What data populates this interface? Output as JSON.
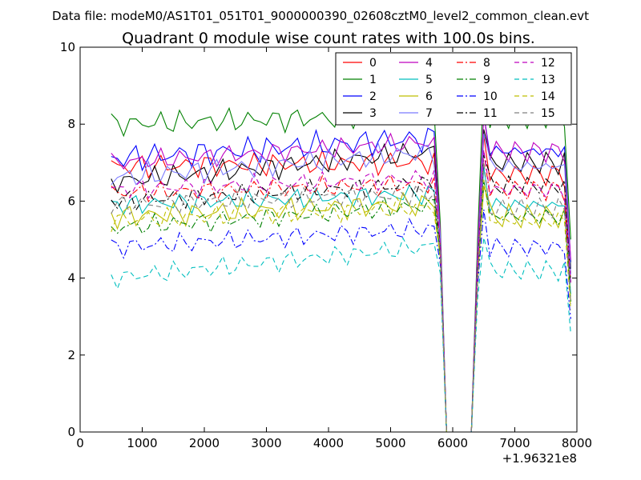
{
  "chart_data": {
    "type": "line",
    "supertitle": "Data file: modeM0/AS1T01_051T01_9000000390_02608cztM0_level2_common_clean.evt",
    "title": "Quadrant 0 module wise count rates with 100.0s bins.",
    "xlabel": "",
    "ylabel": "",
    "x_offset_label": "+1.96321e8",
    "xlim": [
      0,
      8000
    ],
    "ylim": [
      0,
      10
    ],
    "x_ticks": [
      0,
      1000,
      2000,
      3000,
      4000,
      5000,
      6000,
      7000,
      8000
    ],
    "x_tick_labels": [
      "0",
      "1000",
      "2000",
      "3000",
      "4000",
      "5000",
      "6000",
      "7000",
      "8000"
    ],
    "y_ticks": [
      0,
      2,
      4,
      6,
      8,
      10
    ],
    "y_tick_labels": [
      "0",
      "2",
      "4",
      "6",
      "8",
      "10"
    ],
    "grid": false,
    "legend_position": "top-right",
    "x_segment_1": [
      500,
      600,
      700,
      800,
      900,
      1000,
      1100,
      1200,
      1300,
      1400,
      1500,
      1600,
      1700,
      1800,
      1900,
      2000,
      2100,
      2200,
      2300,
      2400,
      2500,
      2600,
      2700,
      2800,
      2900,
      3000,
      3100,
      3200,
      3300,
      3400,
      3500,
      3600,
      3700,
      3800,
      3900,
      4000,
      4100,
      4200,
      4300,
      4400,
      4500,
      4600,
      4700,
      4800,
      4900,
      5000,
      5100,
      5200,
      5300,
      5400,
      5500,
      5600,
      5700,
      5800
    ],
    "gap_x": [
      5900,
      6000,
      6100,
      6200,
      6300
    ],
    "x_segment_2": [
      6400,
      6500,
      6600,
      6700,
      6800,
      6900,
      7000,
      7100,
      7200,
      7300,
      7400,
      7500,
      7600,
      7700,
      7800,
      7900
    ],
    "series": [
      {
        "name": "0",
        "color": "#ff0000",
        "style": "solid",
        "base1": 6.9,
        "slope1": 0.12,
        "base2": 6.7,
        "amp": 0.35,
        "phase": 0.3
      },
      {
        "name": "1",
        "color": "#008000",
        "style": "solid",
        "base1": 8.0,
        "slope1": 0.25,
        "base2": 8.2,
        "amp": 0.35,
        "phase": 1.1
      },
      {
        "name": "2",
        "color": "#0000ff",
        "style": "solid",
        "base1": 7.1,
        "slope1": 0.55,
        "base2": 7.3,
        "amp": 0.4,
        "phase": 2.0
      },
      {
        "name": "3",
        "color": "#000000",
        "style": "solid",
        "base1": 6.5,
        "slope1": 0.8,
        "base2": 7.0,
        "amp": 0.35,
        "phase": 2.7
      },
      {
        "name": "4",
        "color": "#bf00bf",
        "style": "solid",
        "base1": 7.0,
        "slope1": 0.55,
        "base2": 7.3,
        "amp": 0.3,
        "phase": 0.8
      },
      {
        "name": "5",
        "color": "#00bfbf",
        "style": "solid",
        "base1": 5.9,
        "slope1": 0.3,
        "base2": 5.9,
        "amp": 0.3,
        "phase": 1.7
      },
      {
        "name": "6",
        "color": "#bfbf00",
        "style": "solid",
        "base1": 5.6,
        "slope1": 0.35,
        "base2": 5.6,
        "amp": 0.35,
        "phase": 3.3
      },
      {
        "name": "7",
        "color": "#7a7aff",
        "style": "solid",
        "base1": 6.6,
        "slope1": 0.7,
        "base2": 6.9,
        "amp": 0.35,
        "phase": 4.1
      },
      {
        "name": "8",
        "color": "#ff0000",
        "style": "dashdot",
        "base1": 6.2,
        "slope1": 0.25,
        "base2": 6.3,
        "amp": 0.3,
        "phase": 0.5
      },
      {
        "name": "9",
        "color": "#008000",
        "style": "dashdot",
        "base1": 5.3,
        "slope1": 0.6,
        "base2": 5.6,
        "amp": 0.3,
        "phase": 2.4
      },
      {
        "name": "10",
        "color": "#0000ff",
        "style": "dashdot",
        "base1": 4.8,
        "slope1": 0.5,
        "base2": 4.8,
        "amp": 0.3,
        "phase": 1.3
      },
      {
        "name": "11",
        "color": "#000000",
        "style": "dashdot",
        "base1": 6.0,
        "slope1": 0.45,
        "base2": 6.4,
        "amp": 0.3,
        "phase": 3.6
      },
      {
        "name": "12",
        "color": "#bf00bf",
        "style": "dashed",
        "base1": 6.3,
        "slope1": 0.3,
        "base2": 6.3,
        "amp": 0.3,
        "phase": 0.1
      },
      {
        "name": "13",
        "color": "#00bfbf",
        "style": "dashed",
        "base1": 4.0,
        "slope1": 0.85,
        "base2": 4.2,
        "amp": 0.3,
        "phase": 2.9
      },
      {
        "name": "14",
        "color": "#bfbf00",
        "style": "dashed",
        "base1": 5.5,
        "slope1": 0.35,
        "base2": 5.5,
        "amp": 0.3,
        "phase": 4.7
      },
      {
        "name": "15",
        "color": "#808080",
        "style": "dashed",
        "base1": 5.9,
        "slope1": 0.3,
        "base2": 5.8,
        "amp": 0.3,
        "phase": 5.2
      }
    ]
  }
}
